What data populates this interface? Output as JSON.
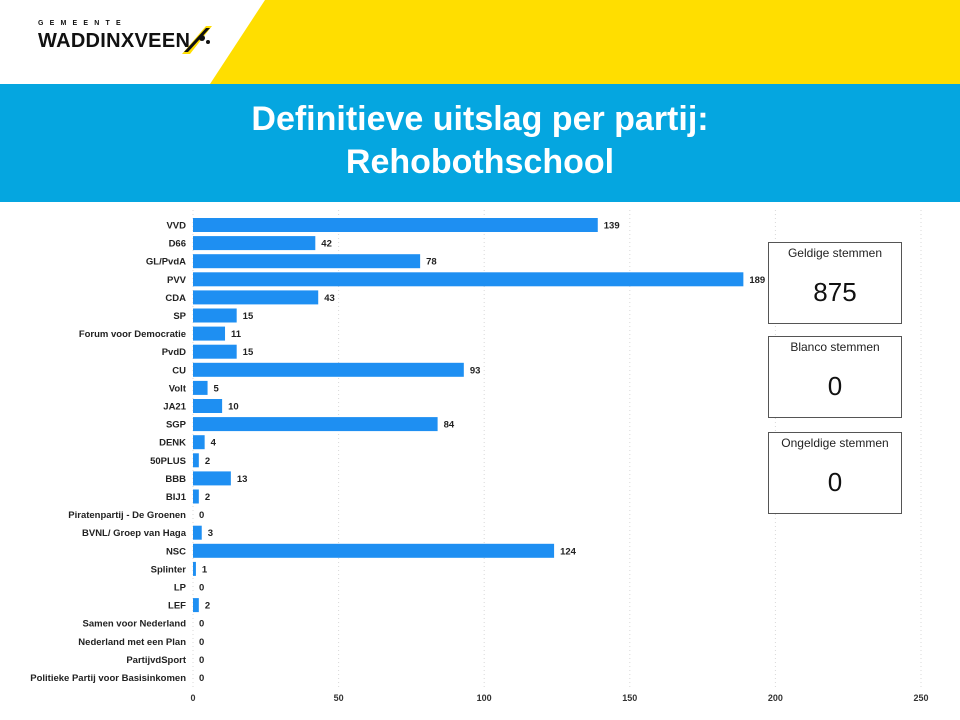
{
  "header": {
    "municipality_small": "GEMEENTE",
    "municipality_name": "WADDINXVEEN",
    "accent_color": "#FFDE00",
    "band_color": "#05A6E0"
  },
  "title": {
    "line1": "Definitieve uitslag per partij:",
    "line2": "Rehobothschool"
  },
  "kpis": [
    {
      "label": "Geldige stemmen",
      "value": "875"
    },
    {
      "label": "Blanco stemmen",
      "value": "0"
    },
    {
      "label": "Ongeldige stemmen",
      "value": "0"
    }
  ],
  "chart_data": {
    "type": "bar",
    "orientation": "horizontal",
    "categories": [
      "VVD",
      "D66",
      "GL/PvdA",
      "PVV",
      "CDA",
      "SP",
      "Forum voor Democratie",
      "PvdD",
      "CU",
      "Volt",
      "JA21",
      "SGP",
      "DENK",
      "50PLUS",
      "BBB",
      "BIJ1",
      "Piratenpartij - De Groenen",
      "BVNL/ Groep van Haga",
      "NSC",
      "Splinter",
      "LP",
      "LEF",
      "Samen voor Nederland",
      "Nederland met een Plan",
      "PartijvdSport",
      "Politieke Partij voor Basisinkomen"
    ],
    "values": [
      139,
      42,
      78,
      189,
      43,
      15,
      11,
      15,
      93,
      5,
      10,
      84,
      4,
      2,
      13,
      2,
      0,
      3,
      124,
      1,
      0,
      2,
      0,
      0,
      0,
      0
    ],
    "xlim": [
      0,
      250
    ],
    "xticks": [
      0,
      50,
      100,
      150,
      200,
      250
    ],
    "bar_color": "#1E8FF2",
    "grid": "vertical dotted",
    "data_labels": true
  }
}
